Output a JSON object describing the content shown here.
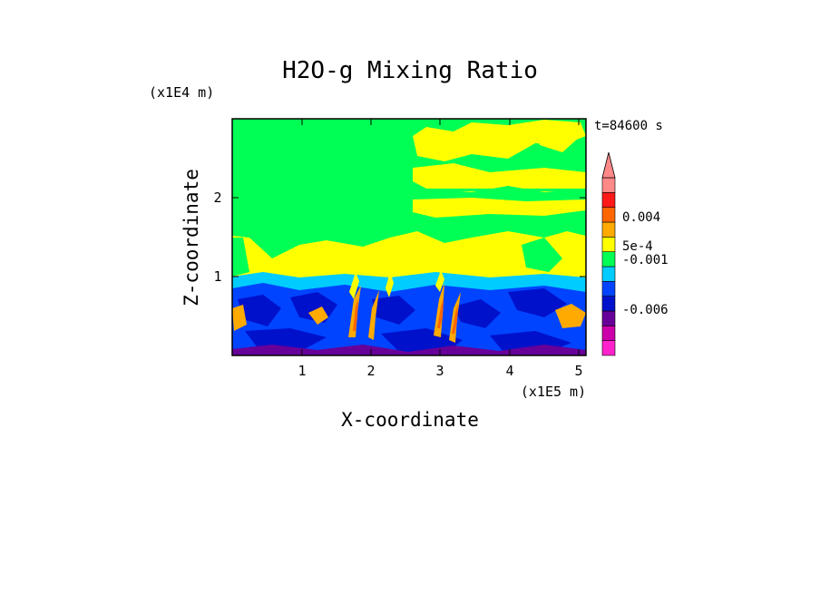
{
  "chart_data": {
    "type": "heatmap",
    "title": "H2O-g Mixing Ratio",
    "xlabel": "X-coordinate",
    "ylabel": "Z-coordinate",
    "x_scale_label": "(x1E5 m)",
    "y_scale_label": "(x1E4 m)",
    "time_label": "t=84600 s",
    "xlim": [
      0,
      5.15
    ],
    "ylim": [
      0,
      2.95
    ],
    "x_ticks": [
      "1",
      "2",
      "3",
      "4",
      "5"
    ],
    "y_ticks": [
      "1",
      "2"
    ],
    "colorbar": {
      "colors": [
        "#ff22cc",
        "#cc00aa",
        "#660099",
        "#0011cc",
        "#0044ff",
        "#00ccff",
        "#00ff55",
        "#ffff00",
        "#ffaa00",
        "#ff6600",
        "#ff1a1a",
        "#ff8888"
      ],
      "labels": [
        "0.004",
        "5e-4",
        "-0.001",
        "-0.006"
      ],
      "extend_max": true
    },
    "field_regions": [
      {
        "level": "0.0",
        "color": "#00ff55",
        "description": "upper region"
      },
      {
        "level": "5e-4",
        "color": "#ffff00",
        "description": "mid-level patches"
      },
      {
        "level": "-0.001",
        "color": "#0044ff",
        "description": "lower region"
      },
      {
        "level": "0.004",
        "color": "#ff6600",
        "description": "embedded plumes"
      }
    ]
  }
}
